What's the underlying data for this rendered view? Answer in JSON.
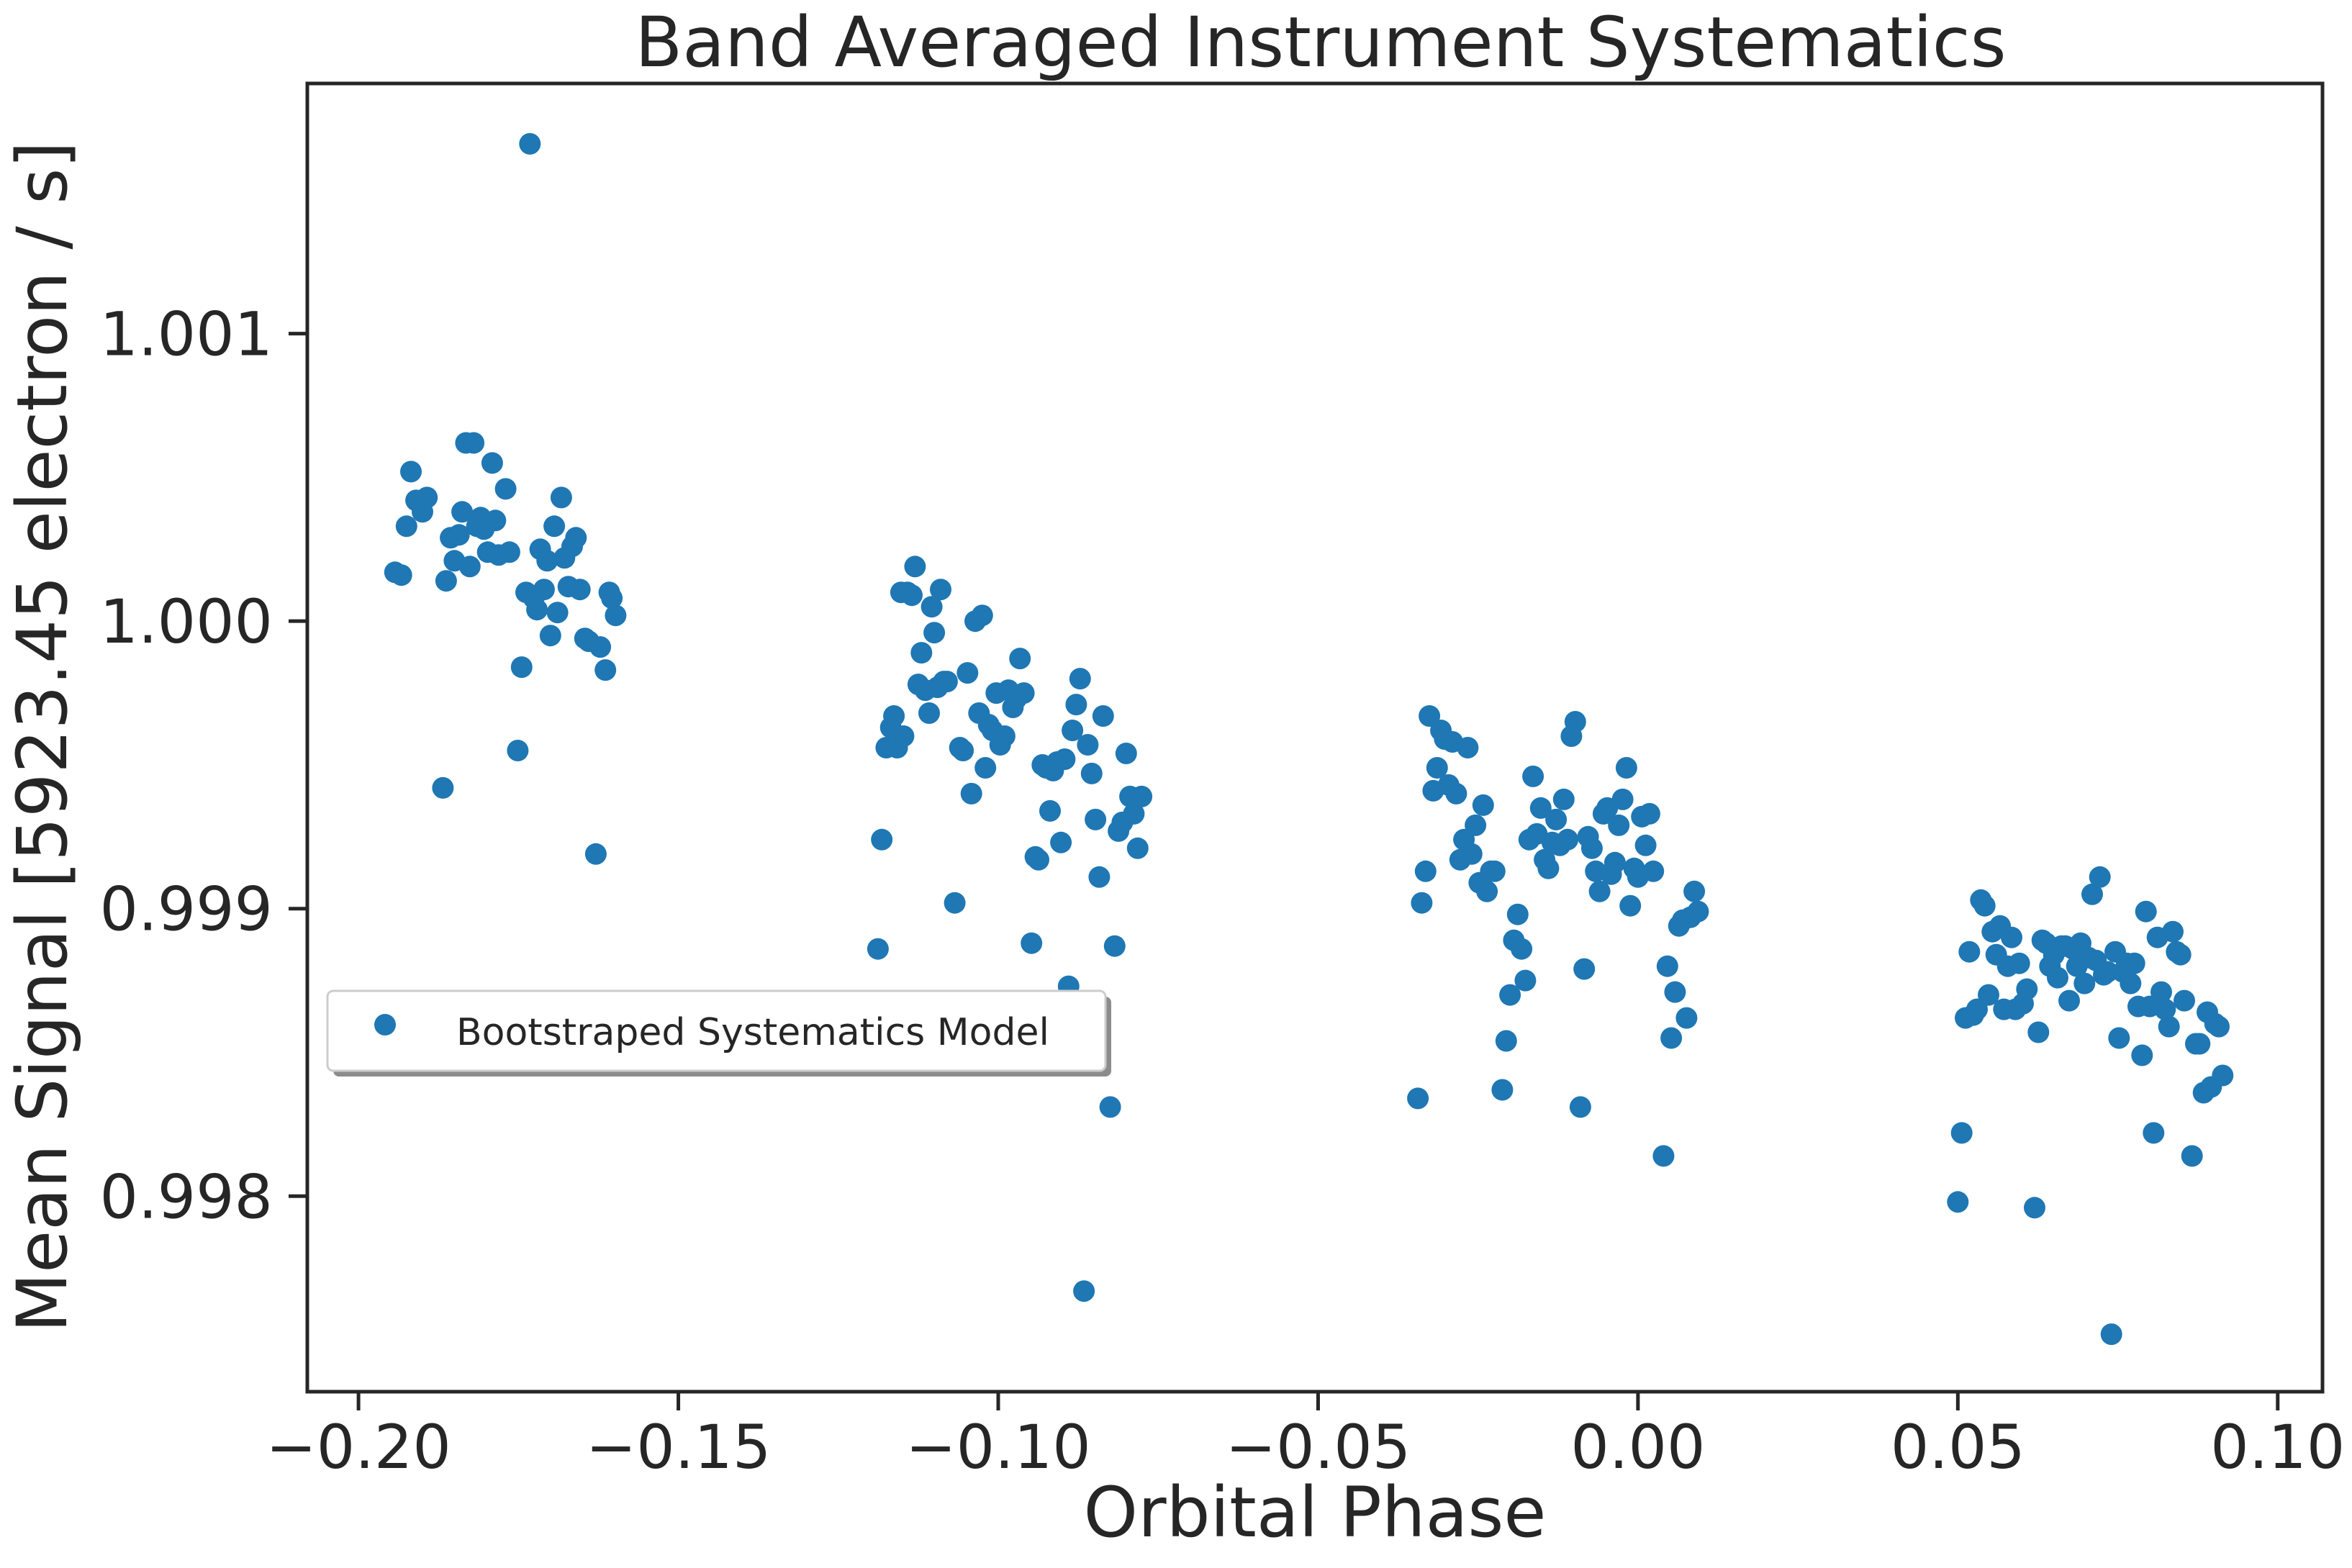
{
  "chart_data": {
    "type": "scatter",
    "title": "Band Averaged Instrument Systematics",
    "xlabel": "Orbital Phase",
    "ylabel": "Mean Signal [5923.45 electron / s]",
    "xlim": [
      -0.208,
      0.107
    ],
    "ylim": [
      0.99732,
      1.00187
    ],
    "xticks": [
      -0.2,
      -0.15,
      -0.1,
      -0.05,
      0.0,
      0.05,
      0.1
    ],
    "xtick_labels": [
      "−0.20",
      "−0.15",
      "−0.10",
      "−0.05",
      "0.00",
      "0.05",
      "0.10"
    ],
    "yticks": [
      0.998,
      0.999,
      1.0,
      1.001
    ],
    "ytick_labels": [
      "0.998",
      "0.999",
      "1.000",
      "1.001"
    ],
    "grid": false,
    "legend": {
      "location": "center-left",
      "entries": [
        "Bootstraped Systematics Model"
      ]
    },
    "colors": {
      "marker": "#1f77b4",
      "axes": "#262626"
    },
    "series": [
      {
        "name": "Bootstraped Systematics Model",
        "points": [
          [
            -0.1943,
            1.00017
          ],
          [
            -0.1933,
            1.00016
          ],
          [
            -0.1925,
            1.00033
          ],
          [
            -0.1918,
            1.00052
          ],
          [
            -0.191,
            1.00042
          ],
          [
            -0.19,
            1.00038
          ],
          [
            -0.1893,
            1.00043
          ],
          [
            -0.1868,
            0.99942
          ],
          [
            -0.1863,
            1.00014
          ],
          [
            -0.1856,
            1.00029
          ],
          [
            -0.185,
            1.00021
          ],
          [
            -0.1843,
            1.0003
          ],
          [
            -0.1838,
            1.00038
          ],
          [
            -0.1832,
            1.00062
          ],
          [
            -0.1826,
            1.00019
          ],
          [
            -0.182,
            1.00062
          ],
          [
            -0.1815,
            1.00033
          ],
          [
            -0.1809,
            1.00036
          ],
          [
            -0.1804,
            1.00032
          ],
          [
            -0.1798,
            1.00024
          ],
          [
            -0.1791,
            1.00055
          ],
          [
            -0.1786,
            1.00035
          ],
          [
            -0.1781,
            1.00023
          ],
          [
            -0.177,
            1.00046
          ],
          [
            -0.1764,
            1.00024
          ],
          [
            -0.1751,
            0.99955
          ],
          [
            -0.1745,
            0.99984
          ],
          [
            -0.1738,
            1.0001
          ],
          [
            -0.1732,
            1.00166
          ],
          [
            -0.1726,
            1.00008
          ],
          [
            -0.1721,
            1.00004
          ],
          [
            -0.1716,
            1.00025
          ],
          [
            -0.171,
            1.00011
          ],
          [
            -0.1705,
            1.00021
          ],
          [
            -0.17,
            0.99995
          ],
          [
            -0.1694,
            1.00033
          ],
          [
            -0.1689,
            1.00003
          ],
          [
            -0.1683,
            1.00043
          ],
          [
            -0.1678,
            1.00022
          ],
          [
            -0.1672,
            1.00012
          ],
          [
            -0.1666,
            1.00026
          ],
          [
            -0.166,
            1.00029
          ],
          [
            -0.1654,
            1.00011
          ],
          [
            -0.1646,
            0.99994
          ],
          [
            -0.164,
            0.99993
          ],
          [
            -0.1629,
            0.99919
          ],
          [
            -0.1622,
            0.99991
          ],
          [
            -0.1614,
            0.99983
          ],
          [
            -0.1608,
            1.0001
          ],
          [
            -0.1604,
            1.00008
          ],
          [
            -0.1598,
            1.00002
          ],
          [
            -0.1188,
            0.99886
          ],
          [
            -0.1182,
            0.99924
          ],
          [
            -0.1175,
            0.99956
          ],
          [
            -0.1168,
            0.99963
          ],
          [
            -0.1163,
            0.99967
          ],
          [
            -0.1158,
            0.99956
          ],
          [
            -0.1152,
            1.0001
          ],
          [
            -0.1148,
            0.9996
          ],
          [
            -0.1142,
            1.0001
          ],
          [
            -0.1135,
            1.00009
          ],
          [
            -0.113,
            1.00019
          ],
          [
            -0.1125,
            0.99978
          ],
          [
            -0.112,
            0.99989
          ],
          [
            -0.1114,
            0.99976
          ],
          [
            -0.1108,
            0.99968
          ],
          [
            -0.1104,
            1.00005
          ],
          [
            -0.11,
            0.99996
          ],
          [
            -0.1095,
            0.99977
          ],
          [
            -0.109,
            1.00011
          ],
          [
            -0.1085,
            0.99979
          ],
          [
            -0.108,
            0.99979
          ],
          [
            -0.1068,
            0.99902
          ],
          [
            -0.106,
            0.99956
          ],
          [
            -0.1055,
            0.99955
          ],
          [
            -0.1048,
            0.99982
          ],
          [
            -0.1042,
            0.9994
          ],
          [
            -0.1036,
            1.0
          ],
          [
            -0.103,
            0.99968
          ],
          [
            -0.1025,
            1.00002
          ],
          [
            -0.102,
            0.99949
          ],
          [
            -0.1015,
            0.99964
          ],
          [
            -0.1009,
            0.99962
          ],
          [
            -0.1003,
            0.99975
          ],
          [
            -0.0997,
            0.99957
          ],
          [
            -0.099,
            0.9996
          ],
          [
            -0.0984,
            0.99976
          ],
          [
            -0.0977,
            0.9997
          ],
          [
            -0.0972,
            0.99973
          ],
          [
            -0.0966,
            0.99987
          ],
          [
            -0.096,
            0.99975
          ],
          [
            -0.0948,
            0.99888
          ],
          [
            -0.0942,
            0.99918
          ],
          [
            -0.0937,
            0.99917
          ],
          [
            -0.0931,
            0.9995
          ],
          [
            -0.0925,
            0.99949
          ],
          [
            -0.0919,
            0.99934
          ],
          [
            -0.0914,
            0.99948
          ],
          [
            -0.0908,
            0.99951
          ],
          [
            -0.0902,
            0.99923
          ],
          [
            -0.0896,
            0.99952
          ],
          [
            -0.089,
            0.99873
          ],
          [
            -0.0884,
            0.99962
          ],
          [
            -0.0878,
            0.99971
          ],
          [
            -0.0872,
            0.9998
          ],
          [
            -0.0866,
            0.99767
          ],
          [
            -0.086,
            0.99957
          ],
          [
            -0.0854,
            0.99947
          ],
          [
            -0.0848,
            0.99931
          ],
          [
            -0.0842,
            0.99911
          ],
          [
            -0.0836,
            0.99967
          ],
          [
            -0.0825,
            0.99831
          ],
          [
            -0.0818,
            0.99887
          ],
          [
            -0.0812,
            0.99927
          ],
          [
            -0.0806,
            0.9993
          ],
          [
            -0.08,
            0.99954
          ],
          [
            -0.0794,
            0.99939
          ],
          [
            -0.0788,
            0.99933
          ],
          [
            -0.0782,
            0.99921
          ],
          [
            -0.0776,
            0.99939
          ],
          [
            -0.0344,
            0.99834
          ],
          [
            -0.0338,
            0.99902
          ],
          [
            -0.0332,
            0.99913
          ],
          [
            -0.0326,
            0.99967
          ],
          [
            -0.032,
            0.99941
          ],
          [
            -0.0314,
            0.99949
          ],
          [
            -0.0308,
            0.99962
          ],
          [
            -0.0302,
            0.99959
          ],
          [
            -0.0296,
            0.99943
          ],
          [
            -0.029,
            0.99958
          ],
          [
            -0.0284,
            0.9994
          ],
          [
            -0.0278,
            0.99917
          ],
          [
            -0.0272,
            0.99924
          ],
          [
            -0.0266,
            0.99956
          ],
          [
            -0.026,
            0.99919
          ],
          [
            -0.0254,
            0.99929
          ],
          [
            -0.0248,
            0.99909
          ],
          [
            -0.0242,
            0.99936
          ],
          [
            -0.0236,
            0.99906
          ],
          [
            -0.023,
            0.99913
          ],
          [
            -0.0224,
            0.99913
          ],
          [
            -0.0212,
            0.99837
          ],
          [
            -0.0206,
            0.99854
          ],
          [
            -0.02,
            0.9987
          ],
          [
            -0.0194,
            0.99889
          ],
          [
            -0.0188,
            0.99898
          ],
          [
            -0.0182,
            0.99886
          ],
          [
            -0.0176,
            0.99875
          ],
          [
            -0.017,
            0.99924
          ],
          [
            -0.0164,
            0.99946
          ],
          [
            -0.0158,
            0.99926
          ],
          [
            -0.0152,
            0.99935
          ],
          [
            -0.0146,
            0.99917
          ],
          [
            -0.014,
            0.99914
          ],
          [
            -0.0134,
            0.99923
          ],
          [
            -0.0128,
            0.99931
          ],
          [
            -0.0122,
            0.99922
          ],
          [
            -0.0116,
            0.99938
          ],
          [
            -0.011,
            0.99924
          ],
          [
            -0.0104,
            0.9996
          ],
          [
            -0.0098,
            0.99965
          ],
          [
            -0.009,
            0.99831
          ],
          [
            -0.0084,
            0.99879
          ],
          [
            -0.0078,
            0.99925
          ],
          [
            -0.0072,
            0.99921
          ],
          [
            -0.0066,
            0.99913
          ],
          [
            -0.006,
            0.99906
          ],
          [
            -0.0054,
            0.99933
          ],
          [
            -0.0048,
            0.99935
          ],
          [
            -0.0042,
            0.99912
          ],
          [
            -0.0036,
            0.99916
          ],
          [
            -0.003,
            0.99929
          ],
          [
            -0.0024,
            0.99938
          ],
          [
            -0.0018,
            0.99949
          ],
          [
            -0.0012,
            0.99901
          ],
          [
            -0.0006,
            0.99914
          ],
          [
            0.0,
            0.99911
          ],
          [
            0.0006,
            0.99932
          ],
          [
            0.0012,
            0.99922
          ],
          [
            0.0018,
            0.99933
          ],
          [
            0.0024,
            0.99913
          ],
          [
            0.004,
            0.99814
          ],
          [
            0.0046,
            0.9988
          ],
          [
            0.0052,
            0.99855
          ],
          [
            0.0058,
            0.99871
          ],
          [
            0.0064,
            0.99894
          ],
          [
            0.007,
            0.99896
          ],
          [
            0.0076,
            0.99862
          ],
          [
            0.0082,
            0.99897
          ],
          [
            0.0088,
            0.99906
          ],
          [
            0.0094,
            0.99899
          ],
          [
            0.05,
            0.99798
          ],
          [
            0.0506,
            0.99822
          ],
          [
            0.0512,
            0.99862
          ],
          [
            0.0518,
            0.99885
          ],
          [
            0.0524,
            0.99863
          ],
          [
            0.053,
            0.99865
          ],
          [
            0.0536,
            0.99903
          ],
          [
            0.0542,
            0.99901
          ],
          [
            0.0548,
            0.9987
          ],
          [
            0.0554,
            0.99892
          ],
          [
            0.056,
            0.99884
          ],
          [
            0.0566,
            0.99894
          ],
          [
            0.0572,
            0.99865
          ],
          [
            0.0578,
            0.9988
          ],
          [
            0.0584,
            0.9989
          ],
          [
            0.059,
            0.99865
          ],
          [
            0.0596,
            0.99881
          ],
          [
            0.0602,
            0.99867
          ],
          [
            0.0608,
            0.99872
          ],
          [
            0.062,
            0.99796
          ],
          [
            0.0626,
            0.99857
          ],
          [
            0.0632,
            0.99889
          ],
          [
            0.0638,
            0.99888
          ],
          [
            0.0644,
            0.9988
          ],
          [
            0.065,
            0.99884
          ],
          [
            0.0656,
            0.99876
          ],
          [
            0.0662,
            0.99887
          ],
          [
            0.0668,
            0.99887
          ],
          [
            0.0674,
            0.99868
          ],
          [
            0.068,
            0.99886
          ],
          [
            0.0686,
            0.9988
          ],
          [
            0.0692,
            0.99888
          ],
          [
            0.0698,
            0.99874
          ],
          [
            0.0704,
            0.99883
          ],
          [
            0.071,
            0.99905
          ],
          [
            0.0716,
            0.99882
          ],
          [
            0.0722,
            0.99911
          ],
          [
            0.0728,
            0.99877
          ],
          [
            0.0734,
            0.99878
          ],
          [
            0.074,
            0.99752
          ],
          [
            0.0746,
            0.99885
          ],
          [
            0.0752,
            0.99855
          ],
          [
            0.0758,
            0.99878
          ],
          [
            0.0764,
            0.99881
          ],
          [
            0.077,
            0.99874
          ],
          [
            0.0776,
            0.99881
          ],
          [
            0.0782,
            0.99866
          ],
          [
            0.0788,
            0.99849
          ],
          [
            0.0794,
            0.99899
          ],
          [
            0.08,
            0.99866
          ],
          [
            0.0806,
            0.99822
          ],
          [
            0.0812,
            0.9989
          ],
          [
            0.0818,
            0.99871
          ],
          [
            0.0824,
            0.99865
          ],
          [
            0.083,
            0.99859
          ],
          [
            0.0836,
            0.99892
          ],
          [
            0.0842,
            0.99885
          ],
          [
            0.0848,
            0.99884
          ],
          [
            0.0854,
            0.99868
          ],
          [
            0.0866,
            0.99814
          ],
          [
            0.0872,
            0.99853
          ],
          [
            0.0878,
            0.99853
          ],
          [
            0.0884,
            0.99836
          ],
          [
            0.089,
            0.99864
          ],
          [
            0.0896,
            0.99838
          ],
          [
            0.0902,
            0.9986
          ],
          [
            0.0908,
            0.99859
          ],
          [
            0.0914,
            0.99842
          ]
        ]
      }
    ]
  }
}
